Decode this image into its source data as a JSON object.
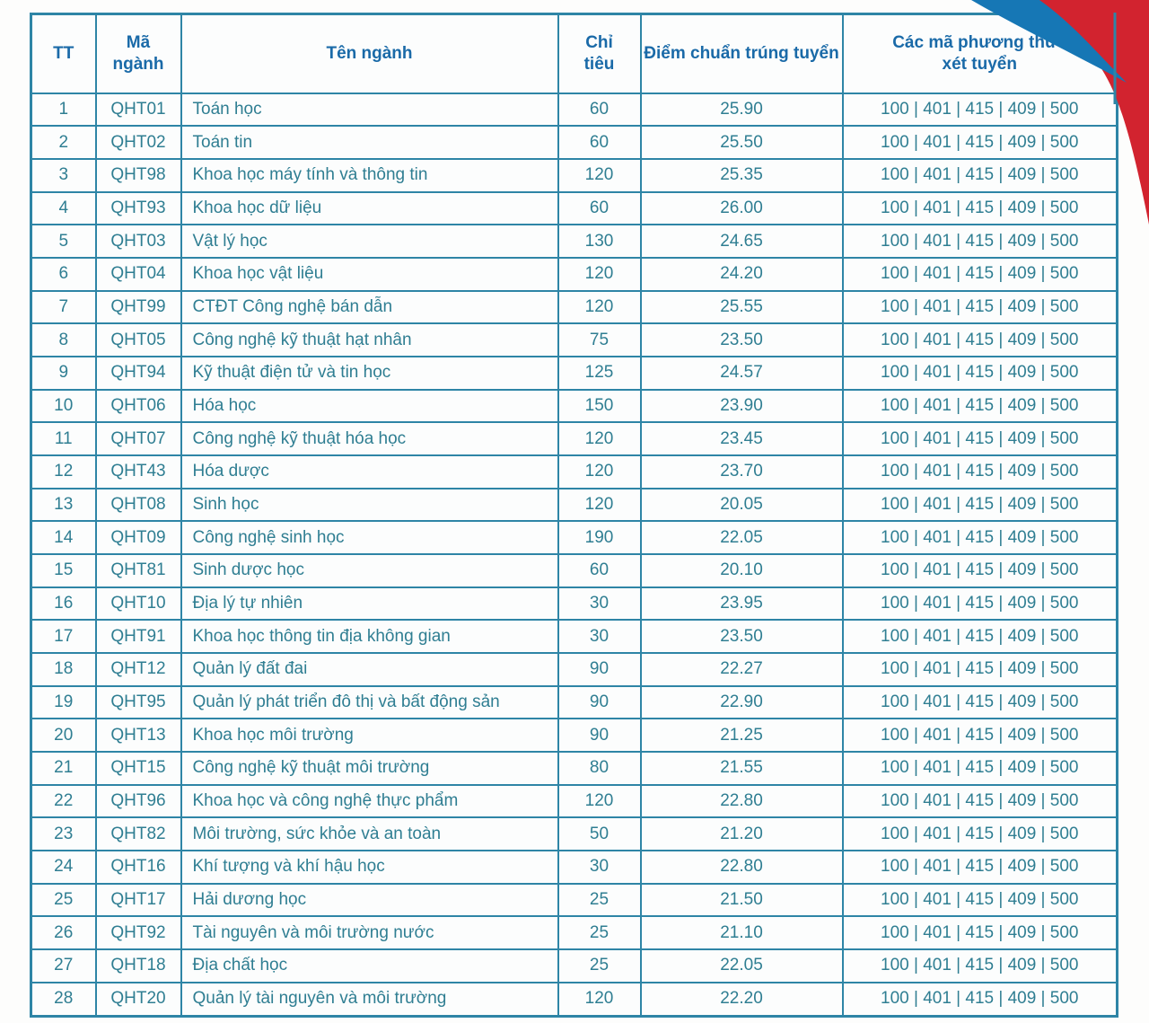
{
  "colors": {
    "table_border": "#2e85a6",
    "header_text": "#1a6aa8",
    "data_text": "#2f7e92",
    "swoosh_red": "#d2232f",
    "swoosh_blue": "#1677b5"
  },
  "decoration": {
    "red_swoosh": "corner ribbon top-right",
    "blue_swoosh": "curved stripe top-right"
  },
  "table": {
    "columns": [
      {
        "key": "tt",
        "label": "TT"
      },
      {
        "key": "ma",
        "label": "Mã\nngành"
      },
      {
        "key": "ten",
        "label": "Tên ngành"
      },
      {
        "key": "chitieu",
        "label": "Chỉ\ntiêu"
      },
      {
        "key": "diem",
        "label": "Điểm chuẩn trúng tuyển"
      },
      {
        "key": "phuongthuc",
        "label": "Các mã phương thức\nxét tuyển"
      }
    ],
    "rows": [
      [
        "1",
        "QHT01",
        "Toán học",
        "60",
        "25.90",
        "100 | 401 | 415 | 409 | 500"
      ],
      [
        "2",
        "QHT02",
        "Toán tin",
        "60",
        "25.50",
        "100 | 401 | 415 | 409 | 500"
      ],
      [
        "3",
        "QHT98",
        "Khoa học máy tính và thông tin",
        "120",
        "25.35",
        "100 | 401 | 415 | 409 | 500"
      ],
      [
        "4",
        "QHT93",
        "Khoa học dữ liệu",
        "60",
        "26.00",
        "100 | 401 | 415 | 409 | 500"
      ],
      [
        "5",
        "QHT03",
        "Vật lý học",
        "130",
        "24.65",
        "100 | 401 | 415 | 409 | 500"
      ],
      [
        "6",
        "QHT04",
        "Khoa học vật liệu",
        "120",
        "24.20",
        "100 | 401 | 415 | 409 | 500"
      ],
      [
        "7",
        "QHT99",
        "CTĐT Công nghệ bán dẫn",
        "120",
        "25.55",
        "100 | 401 | 415 | 409 | 500"
      ],
      [
        "8",
        "QHT05",
        "Công nghệ kỹ thuật hạt nhân",
        "75",
        "23.50",
        "100 | 401 | 415 | 409 | 500"
      ],
      [
        "9",
        "QHT94",
        "Kỹ thuật điện tử và tin học",
        "125",
        "24.57",
        "100 | 401 | 415 | 409 | 500"
      ],
      [
        "10",
        "QHT06",
        "Hóa học",
        "150",
        "23.90",
        "100 | 401 | 415 | 409 | 500"
      ],
      [
        "11",
        "QHT07",
        "Công nghệ kỹ thuật hóa học",
        "120",
        "23.45",
        "100 | 401 | 415 | 409 | 500"
      ],
      [
        "12",
        "QHT43",
        "Hóa dược",
        "120",
        "23.70",
        "100 | 401 | 415 | 409 | 500"
      ],
      [
        "13",
        "QHT08",
        "Sinh học",
        "120",
        "20.05",
        "100 | 401 | 415 | 409 | 500"
      ],
      [
        "14",
        "QHT09",
        "Công nghệ sinh học",
        "190",
        "22.05",
        "100 | 401 | 415 | 409 | 500"
      ],
      [
        "15",
        "QHT81",
        "Sinh dược học",
        "60",
        "20.10",
        "100 | 401 | 415 | 409 | 500"
      ],
      [
        "16",
        "QHT10",
        "Địa lý tự nhiên",
        "30",
        "23.95",
        "100 | 401 | 415 | 409 | 500"
      ],
      [
        "17",
        "QHT91",
        "Khoa học thông tin địa không gian",
        "30",
        "23.50",
        "100 | 401 | 415 | 409 | 500"
      ],
      [
        "18",
        "QHT12",
        "Quản lý đất đai",
        "90",
        "22.27",
        "100 | 401 | 415 | 409 | 500"
      ],
      [
        "19",
        "QHT95",
        "Quản lý phát triển đô thị và bất động sản",
        "90",
        "22.90",
        "100 | 401 | 415 | 409 | 500"
      ],
      [
        "20",
        "QHT13",
        "Khoa học môi trường",
        "90",
        "21.25",
        "100 | 401 | 415 | 409 | 500"
      ],
      [
        "21",
        "QHT15",
        "Công nghệ kỹ thuật môi trường",
        "80",
        "21.55",
        "100 | 401 | 415 | 409 | 500"
      ],
      [
        "22",
        "QHT96",
        "Khoa học và công nghệ thực phẩm",
        "120",
        "22.80",
        "100 | 401 | 415 | 409 | 500"
      ],
      [
        "23",
        "QHT82",
        "Môi trường, sức khỏe và an toàn",
        "50",
        "21.20",
        "100 | 401 | 415 | 409 | 500"
      ],
      [
        "24",
        "QHT16",
        "Khí tượng và khí hậu học",
        "30",
        "22.80",
        "100 | 401 | 415 | 409 | 500"
      ],
      [
        "25",
        "QHT17",
        "Hải dương học",
        "25",
        "21.50",
        "100 | 401 | 415 | 409 | 500"
      ],
      [
        "26",
        "QHT92",
        "Tài nguyên và môi trường nước",
        "25",
        "21.10",
        "100 | 401 | 415 | 409 | 500"
      ],
      [
        "27",
        "QHT18",
        "Địa chất học",
        "25",
        "22.05",
        "100 | 401 | 415 | 409 | 500"
      ],
      [
        "28",
        "QHT20",
        "Quản lý tài nguyên và môi trường",
        "120",
        "22.20",
        "100 | 401 | 415 | 409 | 500"
      ]
    ]
  }
}
